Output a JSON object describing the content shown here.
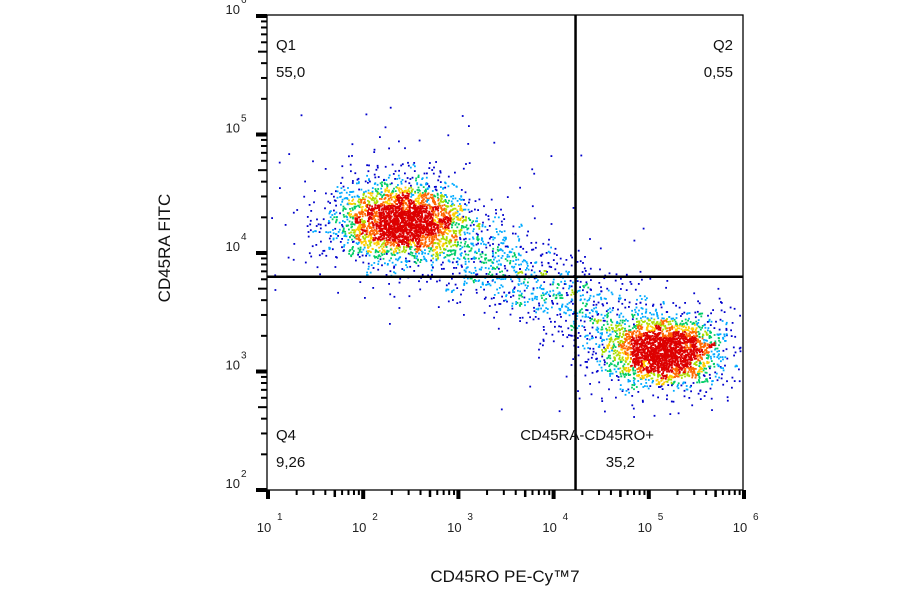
{
  "chart_data": {
    "type": "scatter",
    "subtype": "flow-cytometry density dot plot",
    "xlabel": "CD45RO PE-Cy™7",
    "ylabel": "CD45RA FITC",
    "xscale": "log",
    "yscale": "log",
    "xlim": [
      10,
      1000000
    ],
    "ylim": [
      100,
      1000000
    ],
    "x_ticks": [
      "10^1",
      "10^2",
      "10^3",
      "10^4",
      "10^5",
      "10^6"
    ],
    "y_ticks": [
      "10^2",
      "10^3",
      "10^4",
      "10^5",
      "10^6"
    ],
    "x_tick_values": [
      10,
      100,
      1000,
      10000,
      100000,
      1000000
    ],
    "y_tick_values": [
      100,
      1000,
      10000,
      100000,
      1000000
    ],
    "gate": {
      "x": 17000,
      "y": 6300
    },
    "quadrants": [
      {
        "name": "Q1",
        "value": "55,0"
      },
      {
        "name": "Q2",
        "value": "0,55"
      },
      {
        "name": "CD45RA-CD45RO+",
        "value": "35,2"
      },
      {
        "name": "Q4",
        "value": "9,26"
      }
    ],
    "populations": [
      {
        "center_x": 250,
        "center_y": 19000
      },
      {
        "center_x": 150000,
        "center_y": 1500
      }
    ],
    "density_colors": [
      "#0000cc",
      "#00aaff",
      "#00cc66",
      "#aadd00",
      "#ffcc00",
      "#ff6600",
      "#dd0000"
    ],
    "grid": false
  }
}
